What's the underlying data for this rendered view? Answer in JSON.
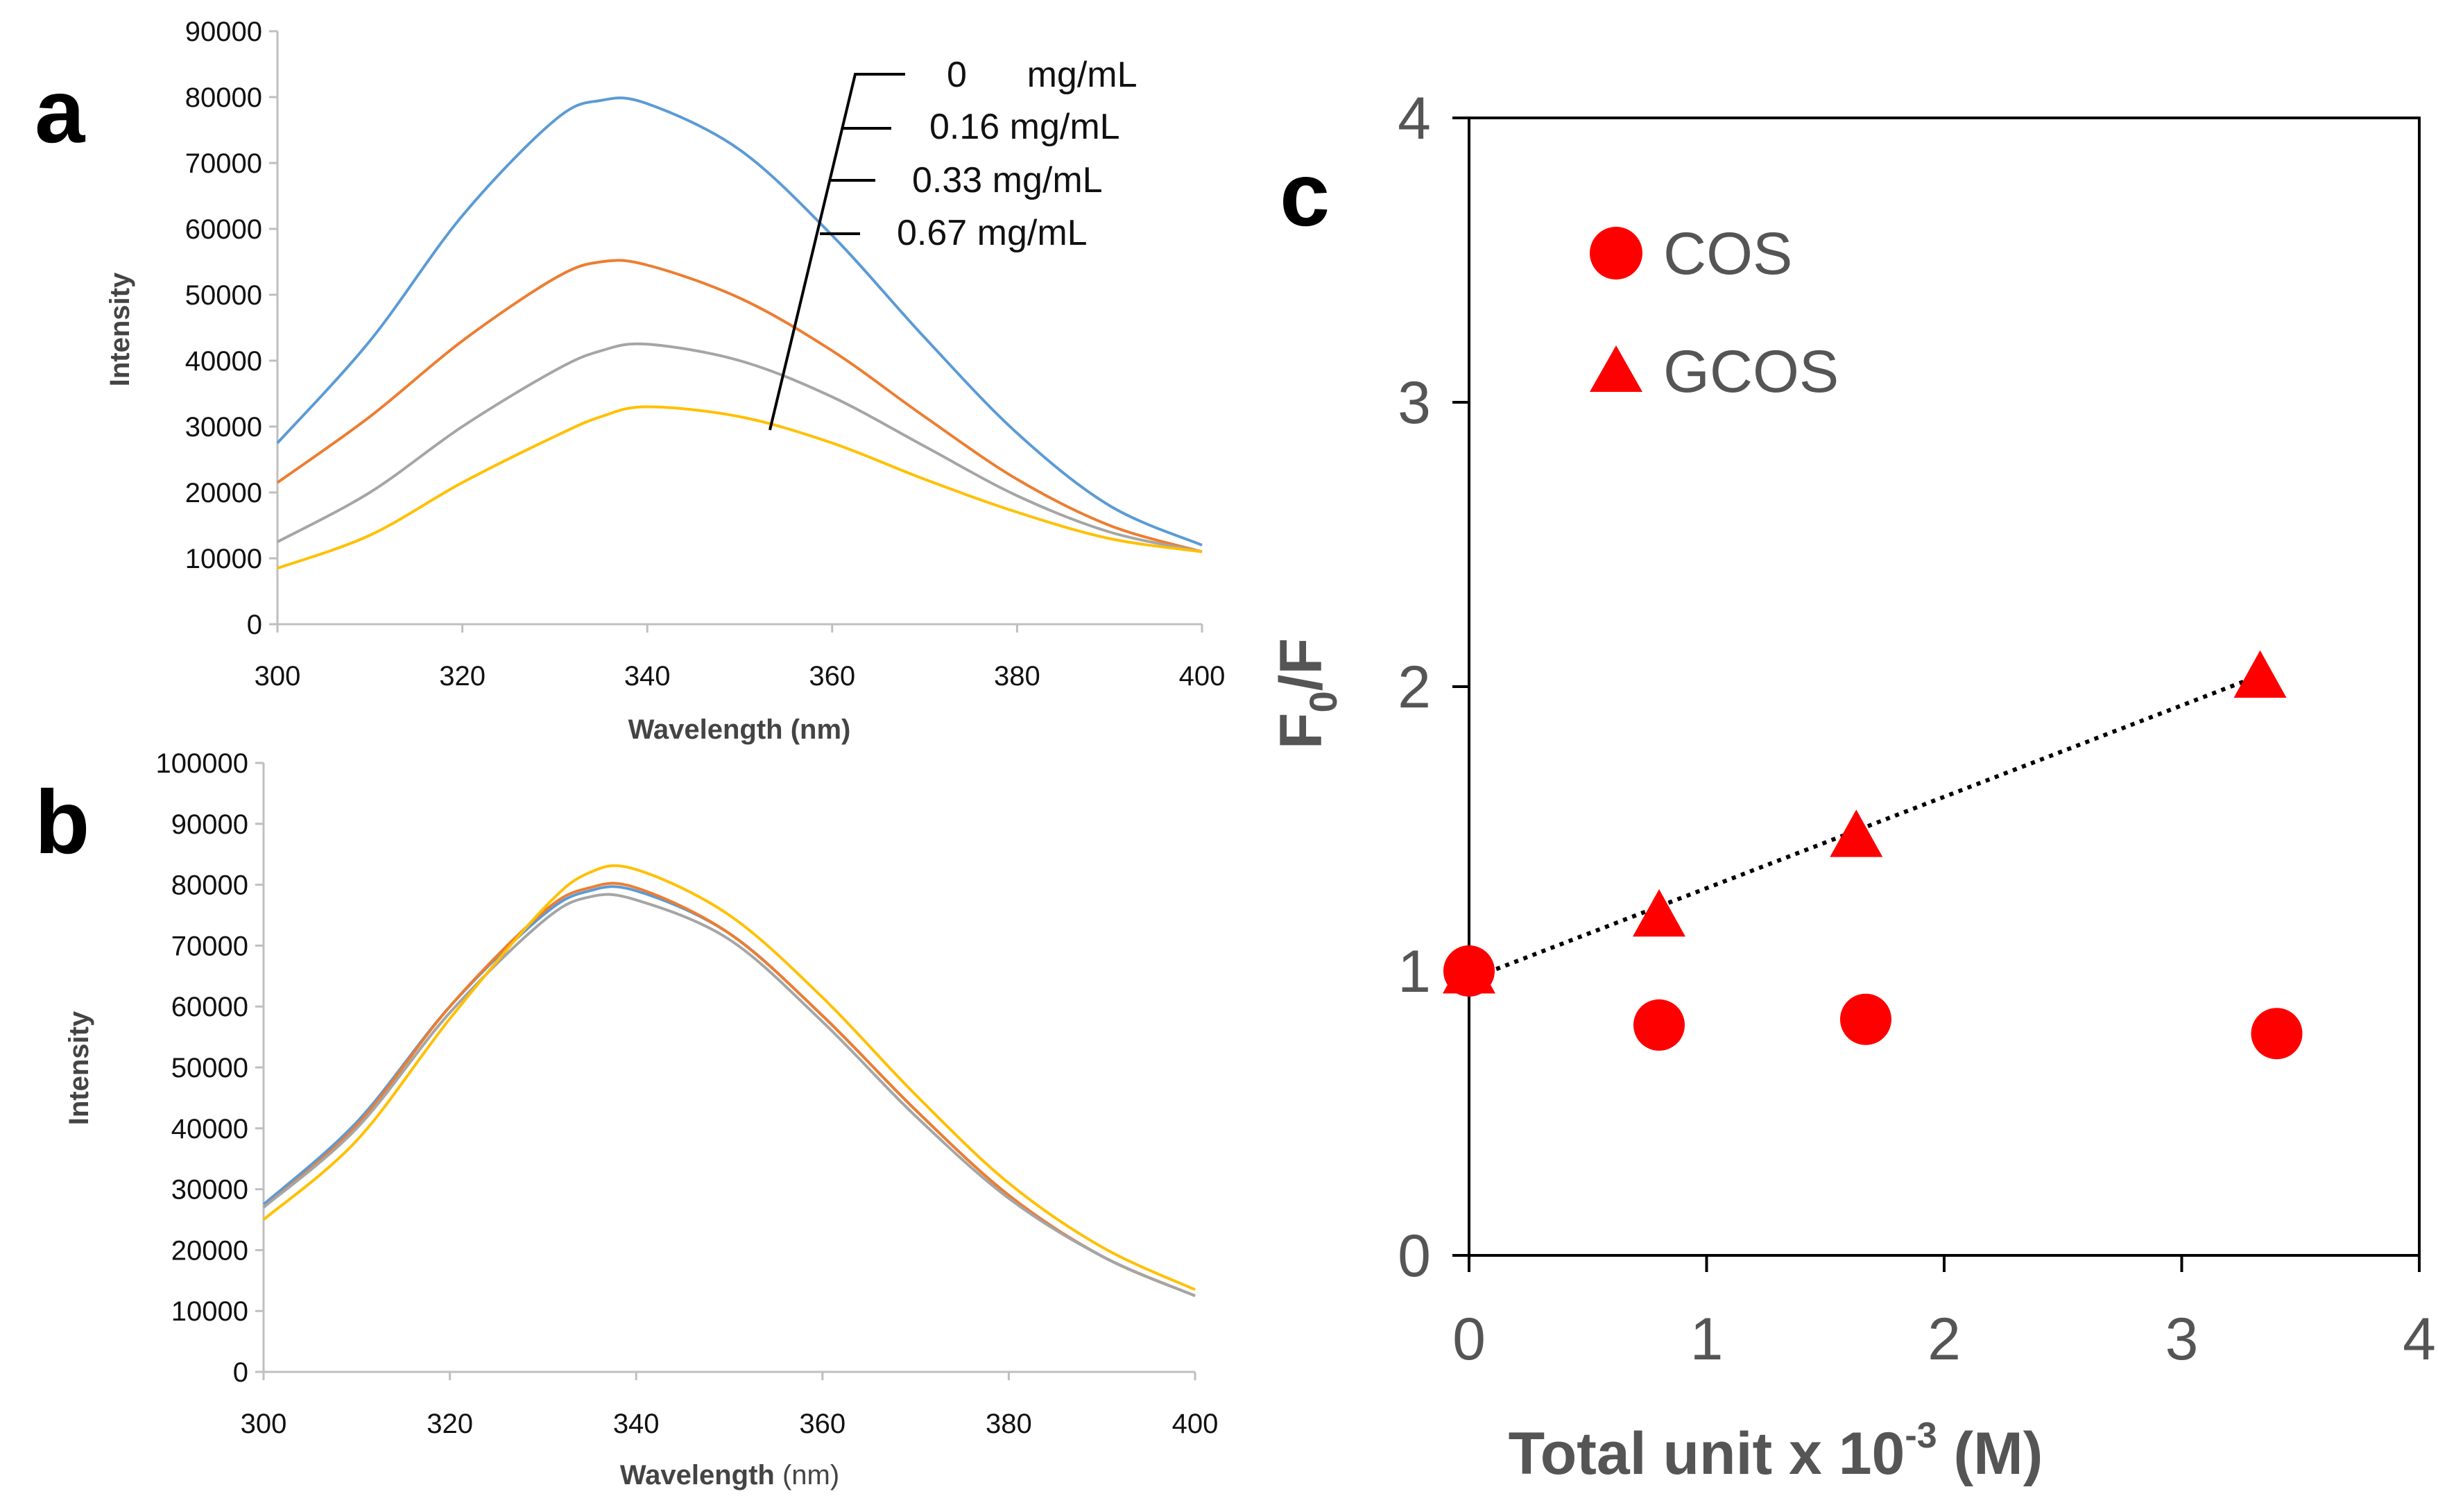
{
  "panel_letters": {
    "a": "a",
    "b": "b",
    "c": "c"
  },
  "chart_data": [
    {
      "id": "a",
      "type": "line",
      "title": "",
      "xlabel": "Wavelength (nm)",
      "ylabel": "Intensity",
      "xlim": [
        300,
        400
      ],
      "ylim": [
        0,
        90000
      ],
      "xticks": [
        "300",
        "320",
        "340",
        "360",
        "380",
        "400"
      ],
      "yticks": [
        "0",
        "10000",
        "20000",
        "30000",
        "40000",
        "50000",
        "60000",
        "70000",
        "80000",
        "90000"
      ],
      "x": [
        300,
        310,
        320,
        330,
        335,
        340,
        350,
        360,
        370,
        380,
        390,
        400
      ],
      "series": [
        {
          "name": "0 mg/mL",
          "color": "#5B9BD5",
          "values": [
            27500,
            43000,
            62000,
            76500,
            79500,
            79000,
            72000,
            59000,
            43500,
            29000,
            18000,
            12000
          ]
        },
        {
          "name": "0.16 mg/mL",
          "color": "#ED7D31",
          "values": [
            21500,
            31500,
            43000,
            52500,
            55000,
            54500,
            49500,
            41500,
            31500,
            22000,
            15000,
            11000
          ]
        },
        {
          "name": "0.33 mg/mL",
          "color": "#A5A5A5",
          "values": [
            12500,
            20000,
            30000,
            38500,
            41500,
            42500,
            40000,
            34500,
            27000,
            19500,
            14000,
            11000
          ]
        },
        {
          "name": "0.67 mg/mL",
          "color": "#FFC000",
          "values": [
            8500,
            13500,
            21500,
            28500,
            31500,
            33000,
            31500,
            27500,
            22000,
            17000,
            13000,
            11000
          ]
        }
      ],
      "annotation_labels": [
        "0      mg/mL",
        "0.16 mg/mL",
        "0.33 mg/mL",
        "0.67 mg/mL"
      ]
    },
    {
      "id": "b",
      "type": "line",
      "title": "",
      "xlabel_bold": "Wavelength",
      "xlabel_rest": " (nm)",
      "ylabel": "Intensity",
      "xlim": [
        300,
        400
      ],
      "ylim": [
        0,
        100000
      ],
      "xticks": [
        "300",
        "320",
        "340",
        "360",
        "380",
        "400"
      ],
      "yticks": [
        "0",
        "10000",
        "20000",
        "30000",
        "40000",
        "50000",
        "60000",
        "70000",
        "80000",
        "90000",
        "100000"
      ],
      "x": [
        300,
        310,
        320,
        330,
        335,
        340,
        350,
        360,
        370,
        380,
        390,
        400
      ],
      "series": [
        {
          "name": "0 mg/mL",
          "color": "#5B9BD5",
          "values": [
            27500,
            41000,
            60000,
            75000,
            79000,
            79000,
            72000,
            58500,
            43000,
            29000,
            19000,
            12500
          ]
        },
        {
          "name": "0.16 mg/mL",
          "color": "#ED7D31",
          "values": [
            27000,
            40500,
            60000,
            75500,
            79500,
            79500,
            72000,
            58500,
            43000,
            29000,
            19000,
            12500
          ]
        },
        {
          "name": "0.33 mg/mL",
          "color": "#A5A5A5",
          "values": [
            27000,
            40000,
            59000,
            74000,
            78000,
            77500,
            71000,
            57500,
            42000,
            28500,
            19000,
            12500
          ]
        },
        {
          "name": "0.67 mg/mL",
          "color": "#FFC000",
          "values": [
            25000,
            38000,
            58000,
            76000,
            82000,
            82500,
            75000,
            61500,
            45500,
            31000,
            20500,
            13500
          ]
        }
      ]
    },
    {
      "id": "c",
      "type": "scatter",
      "title": "",
      "xlabel_main": "Total unit x 10",
      "xlabel_exp": "-3",
      "xlabel_unit": " (M)",
      "ylabel_main": "F",
      "ylabel_sub": "0",
      "ylabel_rest": "/F",
      "xlim": [
        0,
        4
      ],
      "ylim": [
        0,
        4
      ],
      "xticks": [
        "0",
        "1",
        "2",
        "3",
        "4"
      ],
      "yticks": [
        "0",
        "1",
        "2",
        "3",
        "4"
      ],
      "marker_color": "#FF0000",
      "series": [
        {
          "name": "COS",
          "marker": "circle",
          "x": [
            0,
            0.8,
            1.67,
            3.4
          ],
          "y": [
            1.0,
            0.81,
            0.83,
            0.78
          ]
        },
        {
          "name": "GCOS",
          "marker": "triangle",
          "x": [
            0,
            0.8,
            1.63,
            3.33
          ],
          "y": [
            1.0,
            1.2,
            1.48,
            2.04
          ]
        }
      ],
      "trendline": {
        "series": "GCOS",
        "style": "dotted",
        "x": [
          0,
          3.33
        ],
        "y": [
          0.97,
          2.04
        ]
      },
      "legend": [
        "COS",
        "GCOS"
      ]
    }
  ]
}
